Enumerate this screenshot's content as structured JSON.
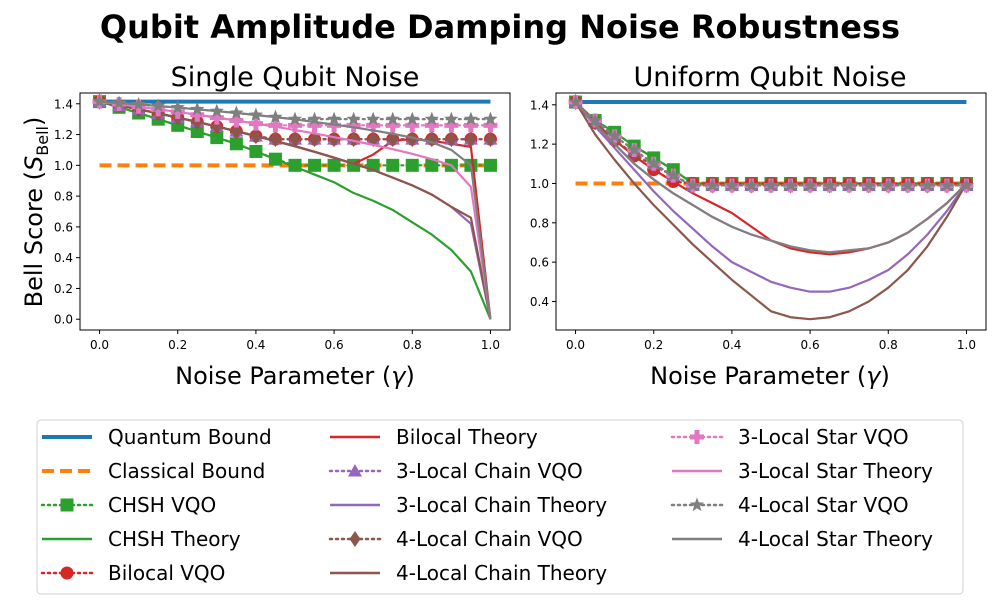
{
  "figure": {
    "title": "Qubit Amplitude Damping Noise Robustness"
  },
  "shared_axes": {
    "ylabel_text": "Bell Score (",
    "ylabel_symbol": "S",
    "ylabel_subscript": "Bell",
    "ylabel_close": ")",
    "xlabel_text": "Noise Parameter (",
    "xlabel_symbol": "γ",
    "xlabel_close": ")"
  },
  "legend": {
    "columns": [
      [
        {
          "label": "Quantum Bound",
          "style": "solid",
          "color": "#1f77b4",
          "marker": "none"
        },
        {
          "label": "Classical Bound",
          "style": "dashed",
          "color": "#ff7f0e",
          "marker": "none"
        },
        {
          "label": "CHSH VQO",
          "style": "dotted",
          "color": "#2ca02c",
          "marker": "square"
        },
        {
          "label": "CHSH Theory",
          "style": "solid",
          "color": "#2ca02c",
          "marker": "none"
        },
        {
          "label": "Bilocal VQO",
          "style": "dotted",
          "color": "#d62728",
          "marker": "circle"
        }
      ],
      [
        {
          "label": "Bilocal Theory",
          "style": "solid",
          "color": "#d62728",
          "marker": "none"
        },
        {
          "label": "3-Local Chain VQO",
          "style": "dotted",
          "color": "#9467bd",
          "marker": "triangle"
        },
        {
          "label": "3-Local Chain Theory",
          "style": "solid",
          "color": "#9467bd",
          "marker": "none"
        },
        {
          "label": "4-Local Chain VQO",
          "style": "dotted",
          "color": "#8c564b",
          "marker": "diamond"
        },
        {
          "label": "4-Local Chain Theory",
          "style": "solid",
          "color": "#8c564b",
          "marker": "none"
        }
      ],
      [
        {
          "label": "3-Local Star VQO",
          "style": "dotted",
          "color": "#e377c2",
          "marker": "plus"
        },
        {
          "label": "3-Local Star Theory",
          "style": "solid",
          "color": "#e377c2",
          "marker": "none"
        },
        {
          "label": "4-Local Star VQO",
          "style": "dotted",
          "color": "#7f7f7f",
          "marker": "star"
        },
        {
          "label": "4-Local Star Theory",
          "style": "solid",
          "color": "#7f7f7f",
          "marker": "none"
        }
      ]
    ]
  },
  "chart_data": [
    {
      "type": "line",
      "title": "Single Qubit Noise",
      "xlabel": "Noise Parameter (γ)",
      "ylabel": "Bell Score (S_Bell)",
      "xlim": [
        -0.05,
        1.05
      ],
      "ylim": [
        -0.07,
        1.47
      ],
      "xticks": [
        0.0,
        0.2,
        0.4,
        0.6,
        0.8,
        1.0
      ],
      "xtick_labels": [
        "0.0",
        "0.2",
        "0.4",
        "0.6",
        "0.8",
        "1.0"
      ],
      "yticks": [
        0.0,
        0.2,
        0.4,
        0.6,
        0.8,
        1.0,
        1.2,
        1.4
      ],
      "ytick_labels": [
        "0.0",
        "0.2",
        "0.4",
        "0.6",
        "0.8",
        "1.0",
        "1.2",
        "1.4"
      ],
      "grid": false,
      "x": [
        0.0,
        0.05,
        0.1,
        0.15,
        0.2,
        0.25,
        0.3,
        0.35,
        0.4,
        0.45,
        0.5,
        0.55,
        0.6,
        0.65,
        0.7,
        0.75,
        0.8,
        0.85,
        0.9,
        0.95,
        1.0
      ],
      "series": [
        {
          "name": "Quantum Bound",
          "color": "#1f77b4",
          "style": "solid",
          "marker": "none",
          "width": 4,
          "x": [
            0,
            1
          ],
          "values": [
            1.414,
            1.414
          ]
        },
        {
          "name": "Classical Bound",
          "color": "#ff7f0e",
          "style": "dashed",
          "marker": "none",
          "width": 4,
          "x": [
            0,
            1
          ],
          "values": [
            1.0,
            1.0
          ]
        },
        {
          "name": "CHSH Theory",
          "color": "#2ca02c",
          "style": "solid",
          "marker": "none",
          "width": 2.2,
          "values": [
            1.414,
            1.377,
            1.34,
            1.3,
            1.26,
            1.22,
            1.18,
            1.14,
            1.09,
            1.04,
            0.99,
            0.94,
            0.89,
            0.82,
            0.77,
            0.71,
            0.63,
            0.55,
            0.45,
            0.31,
            0.0
          ]
        },
        {
          "name": "CHSH VQO",
          "color": "#2ca02c",
          "style": "dotted",
          "marker": "square",
          "width": 2.2,
          "values": [
            1.414,
            1.377,
            1.34,
            1.3,
            1.26,
            1.22,
            1.18,
            1.14,
            1.09,
            1.04,
            1.0,
            1.0,
            1.0,
            1.0,
            1.0,
            1.0,
            1.0,
            1.0,
            1.0,
            1.0,
            1.0
          ]
        },
        {
          "name": "Bilocal Theory",
          "color": "#d62728",
          "style": "solid",
          "marker": "none",
          "width": 2.2,
          "values": [
            1.414,
            1.389,
            1.364,
            1.338,
            1.31,
            1.282,
            1.252,
            1.222,
            1.19,
            1.158,
            1.124,
            1.088,
            1.05,
            1.01,
            1.07,
            1.16,
            1.17,
            1.16,
            1.14,
            1.12,
            0.0
          ]
        },
        {
          "name": "Bilocal VQO",
          "color": "#d62728",
          "style": "dotted",
          "marker": "circle",
          "width": 2.2,
          "values": [
            1.414,
            1.389,
            1.364,
            1.338,
            1.31,
            1.282,
            1.252,
            1.222,
            1.19,
            1.17,
            1.17,
            1.17,
            1.17,
            1.17,
            1.17,
            1.17,
            1.17,
            1.17,
            1.17,
            1.17,
            1.17
          ]
        },
        {
          "name": "3-Local Chain Theory",
          "color": "#9467bd",
          "style": "solid",
          "marker": "none",
          "width": 2.2,
          "values": [
            1.414,
            1.389,
            1.364,
            1.338,
            1.31,
            1.282,
            1.252,
            1.222,
            1.19,
            1.158,
            1.124,
            1.088,
            1.05,
            1.01,
            0.97,
            0.92,
            0.87,
            0.81,
            0.73,
            0.62,
            0.0
          ]
        },
        {
          "name": "3-Local Chain VQO",
          "color": "#9467bd",
          "style": "dotted",
          "marker": "triangle",
          "width": 2.2,
          "values": [
            1.414,
            1.389,
            1.364,
            1.338,
            1.31,
            1.282,
            1.252,
            1.222,
            1.19,
            1.17,
            1.17,
            1.17,
            1.17,
            1.17,
            1.17,
            1.17,
            1.17,
            1.17,
            1.17,
            1.17,
            1.17
          ]
        },
        {
          "name": "4-Local Chain Theory",
          "color": "#8c564b",
          "style": "solid",
          "marker": "none",
          "width": 2.2,
          "values": [
            1.414,
            1.389,
            1.364,
            1.338,
            1.31,
            1.282,
            1.252,
            1.222,
            1.19,
            1.158,
            1.124,
            1.088,
            1.05,
            1.01,
            0.97,
            0.92,
            0.87,
            0.81,
            0.73,
            0.66,
            0.0
          ]
        },
        {
          "name": "4-Local Chain VQO",
          "color": "#8c564b",
          "style": "dotted",
          "marker": "diamond",
          "width": 2.2,
          "values": [
            1.414,
            1.389,
            1.364,
            1.338,
            1.31,
            1.282,
            1.252,
            1.222,
            1.19,
            1.17,
            1.17,
            1.17,
            1.17,
            1.17,
            1.17,
            1.17,
            1.17,
            1.17,
            1.17,
            1.17,
            1.17
          ]
        },
        {
          "name": "3-Local Star Theory",
          "color": "#e377c2",
          "style": "solid",
          "marker": "none",
          "width": 2.2,
          "values": [
            1.414,
            1.398,
            1.381,
            1.364,
            1.347,
            1.329,
            1.31,
            1.291,
            1.271,
            1.251,
            1.229,
            1.207,
            1.183,
            1.159,
            1.133,
            1.105,
            1.075,
            1.04,
            1.0,
            0.86,
            0.0
          ]
        },
        {
          "name": "3-Local Star VQO",
          "color": "#e377c2",
          "style": "dotted",
          "marker": "plus",
          "width": 2.2,
          "values": [
            1.414,
            1.398,
            1.381,
            1.364,
            1.347,
            1.329,
            1.31,
            1.291,
            1.271,
            1.26,
            1.26,
            1.26,
            1.26,
            1.26,
            1.26,
            1.26,
            1.26,
            1.26,
            1.26,
            1.26,
            1.26
          ]
        },
        {
          "name": "4-Local Star Theory",
          "color": "#7f7f7f",
          "style": "solid",
          "marker": "none",
          "width": 2.2,
          "values": [
            1.414,
            1.405,
            1.396,
            1.386,
            1.375,
            1.364,
            1.352,
            1.34,
            1.327,
            1.313,
            1.298,
            1.282,
            1.265,
            1.247,
            1.227,
            1.205,
            1.18,
            1.15,
            1.1,
            1.0,
            0.0
          ]
        },
        {
          "name": "4-Local Star VQO",
          "color": "#7f7f7f",
          "style": "dotted",
          "marker": "star",
          "width": 2.2,
          "values": [
            1.414,
            1.405,
            1.396,
            1.386,
            1.375,
            1.364,
            1.352,
            1.34,
            1.327,
            1.313,
            1.3,
            1.3,
            1.3,
            1.3,
            1.3,
            1.3,
            1.3,
            1.3,
            1.3,
            1.3,
            1.3
          ]
        }
      ]
    },
    {
      "type": "line",
      "title": "Uniform Qubit Noise",
      "xlabel": "Noise Parameter (γ)",
      "ylabel": "",
      "xlim": [
        -0.05,
        1.05
      ],
      "ylim": [
        0.255,
        1.46
      ],
      "xticks": [
        0.0,
        0.2,
        0.4,
        0.6,
        0.8,
        1.0
      ],
      "xtick_labels": [
        "0.0",
        "0.2",
        "0.4",
        "0.6",
        "0.8",
        "1.0"
      ],
      "yticks": [
        0.4,
        0.6,
        0.8,
        1.0,
        1.2,
        1.4
      ],
      "ytick_labels": [
        "0.4",
        "0.6",
        "0.8",
        "1.0",
        "1.2",
        "1.4"
      ],
      "grid": false,
      "x": [
        0.0,
        0.05,
        0.1,
        0.15,
        0.2,
        0.25,
        0.3,
        0.35,
        0.4,
        0.45,
        0.5,
        0.55,
        0.6,
        0.65,
        0.7,
        0.75,
        0.8,
        0.85,
        0.9,
        0.95,
        1.0
      ],
      "series": [
        {
          "name": "Quantum Bound",
          "color": "#1f77b4",
          "style": "solid",
          "marker": "none",
          "width": 4,
          "x": [
            0,
            1
          ],
          "values": [
            1.414,
            1.414
          ]
        },
        {
          "name": "Classical Bound",
          "color": "#ff7f0e",
          "style": "dashed",
          "marker": "none",
          "width": 4,
          "x": [
            0,
            1
          ],
          "values": [
            1.0,
            1.0
          ]
        },
        {
          "name": "CHSH Theory",
          "color": "#2ca02c",
          "style": "solid",
          "marker": "none",
          "width": 2.2,
          "values": [
            1.414,
            1.32,
            1.26,
            1.19,
            1.13,
            1.07,
            1.0,
            1.0,
            1.0,
            1.0,
            1.0,
            1.0,
            1.0,
            1.0,
            1.0,
            1.0,
            1.0,
            1.0,
            1.0,
            1.0,
            1.0
          ]
        },
        {
          "name": "CHSH VQO",
          "color": "#2ca02c",
          "style": "dotted",
          "marker": "square",
          "width": 2.2,
          "values": [
            1.414,
            1.32,
            1.26,
            1.19,
            1.13,
            1.07,
            1.0,
            1.0,
            1.0,
            1.0,
            1.0,
            1.0,
            1.0,
            1.0,
            1.0,
            1.0,
            1.0,
            1.0,
            1.0,
            1.0,
            1.0
          ]
        },
        {
          "name": "Bilocal Theory",
          "color": "#d62728",
          "style": "solid",
          "marker": "none",
          "width": 2.2,
          "values": [
            1.414,
            1.31,
            1.22,
            1.14,
            1.07,
            1.01,
            0.95,
            0.9,
            0.85,
            0.78,
            0.71,
            0.67,
            0.65,
            0.64,
            0.65,
            0.67,
            0.7,
            0.75,
            0.82,
            0.9,
            1.0
          ]
        },
        {
          "name": "Bilocal VQO",
          "color": "#d62728",
          "style": "dotted",
          "marker": "circle",
          "width": 2.2,
          "values": [
            1.414,
            1.31,
            1.22,
            1.14,
            1.07,
            1.01,
            1.0,
            1.0,
            1.0,
            1.0,
            1.0,
            1.0,
            1.0,
            1.0,
            1.0,
            1.0,
            1.0,
            1.0,
            1.0,
            1.0,
            1.0
          ]
        },
        {
          "name": "3-Local Chain Theory",
          "color": "#9467bd",
          "style": "solid",
          "marker": "none",
          "width": 2.2,
          "values": [
            1.414,
            1.29,
            1.18,
            1.07,
            0.96,
            0.86,
            0.77,
            0.68,
            0.6,
            0.55,
            0.5,
            0.47,
            0.45,
            0.45,
            0.47,
            0.51,
            0.56,
            0.64,
            0.74,
            0.86,
            1.0
          ]
        },
        {
          "name": "3-Local Chain VQO",
          "color": "#9467bd",
          "style": "dotted",
          "marker": "triangle",
          "width": 2.2,
          "values": [
            1.414,
            1.32,
            1.24,
            1.17,
            1.1,
            1.04,
            0.99,
            0.99,
            0.99,
            0.99,
            0.99,
            0.99,
            0.99,
            0.99,
            0.99,
            0.99,
            0.99,
            0.99,
            0.99,
            0.99,
            0.99
          ]
        },
        {
          "name": "4-Local Chain Theory",
          "color": "#8c564b",
          "style": "solid",
          "marker": "none",
          "width": 2.2,
          "values": [
            1.414,
            1.25,
            1.12,
            1.0,
            0.89,
            0.79,
            0.69,
            0.6,
            0.51,
            0.43,
            0.35,
            0.32,
            0.31,
            0.32,
            0.35,
            0.4,
            0.47,
            0.56,
            0.68,
            0.83,
            1.0
          ]
        },
        {
          "name": "4-Local Chain VQO",
          "color": "#8c564b",
          "style": "dotted",
          "marker": "diamond",
          "width": 2.2,
          "values": [
            1.414,
            1.31,
            1.22,
            1.15,
            1.09,
            1.04,
            0.99,
            0.99,
            0.99,
            0.99,
            0.99,
            0.99,
            0.99,
            0.99,
            0.99,
            0.99,
            0.99,
            0.99,
            0.99,
            0.99,
            0.99
          ]
        },
        {
          "name": "3-Local Star Theory",
          "color": "#e377c2",
          "style": "solid",
          "marker": "none",
          "width": 2.2,
          "values": [
            1.414,
            1.3,
            1.2,
            1.1,
            1.02,
            0.95,
            0.89,
            0.83,
            0.78,
            0.74,
            0.71,
            0.68,
            0.66,
            0.65,
            0.66,
            0.67,
            0.7,
            0.75,
            0.82,
            0.9,
            1.0
          ]
        },
        {
          "name": "3-Local Star VQO",
          "color": "#e377c2",
          "style": "dotted",
          "marker": "plus",
          "width": 2.2,
          "values": [
            1.414,
            1.32,
            1.24,
            1.17,
            1.1,
            1.04,
            0.99,
            0.99,
            0.99,
            0.99,
            0.99,
            0.99,
            0.99,
            0.99,
            0.99,
            0.99,
            0.99,
            0.99,
            0.99,
            0.99,
            0.99
          ]
        },
        {
          "name": "4-Local Star Theory",
          "color": "#7f7f7f",
          "style": "solid",
          "marker": "none",
          "width": 2.2,
          "values": [
            1.414,
            1.3,
            1.2,
            1.1,
            1.02,
            0.95,
            0.89,
            0.83,
            0.78,
            0.74,
            0.71,
            0.68,
            0.66,
            0.65,
            0.66,
            0.67,
            0.7,
            0.75,
            0.82,
            0.9,
            1.0
          ]
        },
        {
          "name": "4-Local Star VQO",
          "color": "#7f7f7f",
          "style": "dotted",
          "marker": "star",
          "width": 2.2,
          "values": [
            1.414,
            1.32,
            1.24,
            1.17,
            1.1,
            1.04,
            0.99,
            0.99,
            0.99,
            0.99,
            0.99,
            0.99,
            0.99,
            0.99,
            0.99,
            0.99,
            0.99,
            0.99,
            0.99,
            0.99,
            0.99
          ]
        }
      ]
    }
  ]
}
